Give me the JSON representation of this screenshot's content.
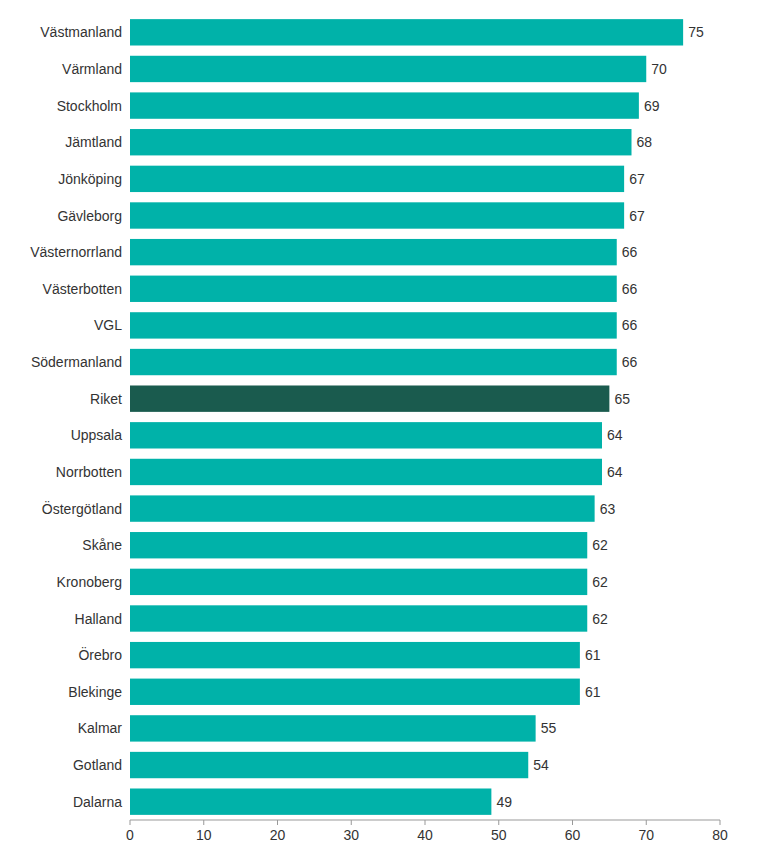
{
  "chart_data": {
    "type": "bar",
    "orientation": "horizontal",
    "categories": [
      "Dalarna",
      "Gotland",
      "Kalmar",
      "Blekinge",
      "Örebro",
      "Halland",
      "Kronoberg",
      "Skåne",
      "Östergötland",
      "Norrbotten",
      "Uppsala",
      "Riket",
      "Södermanland",
      "VGL",
      "Västerbotten",
      "Västernorrland",
      "Gävleborg",
      "Jönköping",
      "Jämtland",
      "Stockholm",
      "Värmland",
      "Västmanland"
    ],
    "values": [
      49,
      54,
      55,
      61,
      61,
      62,
      62,
      62,
      63,
      64,
      64,
      65,
      66,
      66,
      66,
      66,
      67,
      67,
      68,
      69,
      70,
      75
    ],
    "colors": [
      "#00b2a9",
      "#00b2a9",
      "#00b2a9",
      "#00b2a9",
      "#00b2a9",
      "#00b2a9",
      "#00b2a9",
      "#00b2a9",
      "#00b2a9",
      "#00b2a9",
      "#00b2a9",
      "#1a5b4e",
      "#00b2a9",
      "#00b2a9",
      "#00b2a9",
      "#00b2a9",
      "#00b2a9",
      "#00b2a9",
      "#00b2a9",
      "#00b2a9",
      "#00b2a9",
      "#00b2a9"
    ],
    "xlim": [
      0,
      80
    ],
    "xticks": [
      0,
      10,
      20,
      30,
      40,
      50,
      60,
      70,
      80
    ],
    "grid": false,
    "data_labels": true
  }
}
